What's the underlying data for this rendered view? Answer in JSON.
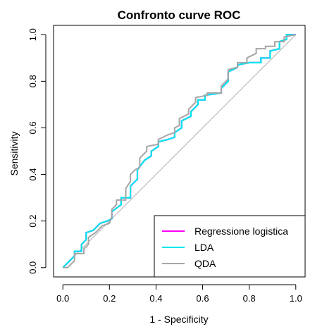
{
  "chart_data": {
    "type": "line",
    "title": "Confronto curve ROC",
    "xlabel": "1 - Specificity",
    "ylabel": "Sensitivity",
    "xlim": [
      -0.04,
      1.04
    ],
    "ylim": [
      -0.04,
      1.04
    ],
    "x_ticks": [
      "0.0",
      "0.2",
      "0.4",
      "0.6",
      "0.8",
      "1.0"
    ],
    "y_ticks": [
      "0.0",
      "0.2",
      "0.4",
      "0.6",
      "0.8",
      "1.0"
    ],
    "tick_values": [
      0,
      0.2,
      0.4,
      0.6,
      0.8,
      1.0
    ],
    "grid": false,
    "legend_position": "bottom-right",
    "reference_line": {
      "x": [
        0,
        1
      ],
      "y": [
        0,
        1
      ],
      "color": "#b0b0b0"
    },
    "series": [
      {
        "name": "Regressione logistica",
        "color": "#ff00ff",
        "x": [
          0.0,
          0.02,
          0.05,
          0.05,
          0.08,
          0.08,
          0.1,
          0.1,
          0.13,
          0.16,
          0.19,
          0.21,
          0.21,
          0.25,
          0.25,
          0.29,
          0.29,
          0.32,
          0.32,
          0.35,
          0.38,
          0.38,
          0.41,
          0.41,
          0.45,
          0.48,
          0.48,
          0.51,
          0.51,
          0.55,
          0.55,
          0.58,
          0.58,
          0.61,
          0.61,
          0.68,
          0.68,
          0.71,
          0.71,
          0.75,
          0.75,
          0.8,
          0.8,
          0.85,
          0.85,
          0.89,
          0.89,
          0.93,
          0.93,
          0.96,
          0.96,
          1.0
        ],
        "y": [
          0.0,
          0.02,
          0.05,
          0.07,
          0.07,
          0.1,
          0.12,
          0.15,
          0.16,
          0.19,
          0.2,
          0.21,
          0.24,
          0.27,
          0.3,
          0.3,
          0.35,
          0.38,
          0.42,
          0.46,
          0.48,
          0.5,
          0.52,
          0.54,
          0.55,
          0.56,
          0.58,
          0.6,
          0.63,
          0.65,
          0.67,
          0.7,
          0.72,
          0.72,
          0.74,
          0.75,
          0.77,
          0.8,
          0.84,
          0.86,
          0.87,
          0.88,
          0.88,
          0.88,
          0.9,
          0.9,
          0.93,
          0.94,
          0.97,
          0.98,
          1.0,
          1.0
        ]
      },
      {
        "name": "LDA",
        "color": "#00e5ee",
        "x": [
          0.0,
          0.02,
          0.05,
          0.05,
          0.08,
          0.08,
          0.1,
          0.1,
          0.13,
          0.16,
          0.19,
          0.21,
          0.21,
          0.25,
          0.25,
          0.29,
          0.29,
          0.32,
          0.32,
          0.35,
          0.38,
          0.38,
          0.41,
          0.41,
          0.45,
          0.48,
          0.48,
          0.51,
          0.51,
          0.55,
          0.55,
          0.58,
          0.58,
          0.61,
          0.61,
          0.68,
          0.68,
          0.71,
          0.71,
          0.75,
          0.75,
          0.8,
          0.8,
          0.85,
          0.85,
          0.89,
          0.89,
          0.93,
          0.93,
          0.96,
          0.96,
          1.0
        ],
        "y": [
          0.0,
          0.02,
          0.05,
          0.07,
          0.07,
          0.1,
          0.12,
          0.15,
          0.16,
          0.19,
          0.2,
          0.21,
          0.24,
          0.27,
          0.3,
          0.3,
          0.35,
          0.38,
          0.42,
          0.46,
          0.48,
          0.5,
          0.52,
          0.54,
          0.55,
          0.56,
          0.58,
          0.6,
          0.63,
          0.65,
          0.67,
          0.7,
          0.72,
          0.72,
          0.74,
          0.75,
          0.77,
          0.8,
          0.84,
          0.86,
          0.87,
          0.88,
          0.88,
          0.88,
          0.9,
          0.9,
          0.93,
          0.94,
          0.97,
          0.98,
          1.0,
          1.0
        ]
      },
      {
        "name": "QDA",
        "color": "#a6a6a6",
        "x": [
          0.0,
          0.02,
          0.05,
          0.05,
          0.09,
          0.09,
          0.11,
          0.11,
          0.14,
          0.17,
          0.2,
          0.21,
          0.21,
          0.23,
          0.23,
          0.27,
          0.27,
          0.29,
          0.29,
          0.31,
          0.33,
          0.33,
          0.36,
          0.36,
          0.41,
          0.41,
          0.45,
          0.48,
          0.48,
          0.5,
          0.5,
          0.54,
          0.54,
          0.57,
          0.57,
          0.62,
          0.62,
          0.68,
          0.68,
          0.71,
          0.71,
          0.75,
          0.75,
          0.79,
          0.79,
          0.83,
          0.83,
          0.87,
          0.87,
          0.91,
          0.91,
          0.95,
          0.95,
          1.0
        ],
        "y": [
          0.0,
          0.0,
          0.03,
          0.06,
          0.06,
          0.08,
          0.1,
          0.13,
          0.15,
          0.18,
          0.19,
          0.22,
          0.25,
          0.27,
          0.29,
          0.29,
          0.34,
          0.37,
          0.4,
          0.42,
          0.43,
          0.47,
          0.5,
          0.52,
          0.53,
          0.55,
          0.57,
          0.58,
          0.6,
          0.61,
          0.64,
          0.66,
          0.68,
          0.71,
          0.73,
          0.74,
          0.75,
          0.75,
          0.78,
          0.81,
          0.85,
          0.86,
          0.88,
          0.88,
          0.9,
          0.92,
          0.94,
          0.94,
          0.95,
          0.95,
          0.97,
          0.97,
          0.99,
          1.0
        ]
      }
    ]
  }
}
